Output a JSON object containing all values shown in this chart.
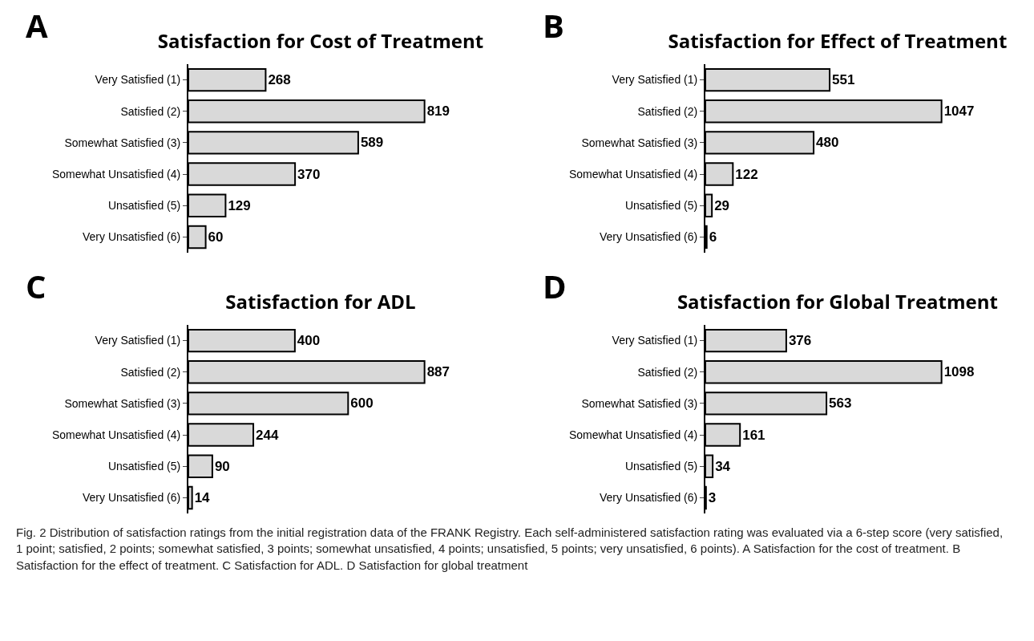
{
  "chart_data": [
    {
      "type": "bar",
      "orientation": "horizontal",
      "title": "Satisfaction for Cost of Treatment",
      "categories": [
        "Very Satisfied (1)",
        "Satisfied (2)",
        "Somewhat Satisfied (3)",
        "Somewhat Unsatisfied (4)",
        "Unsatisfied (5)",
        "Very Unsatisfied (6)"
      ],
      "values": [
        268,
        819,
        589,
        370,
        129,
        60
      ],
      "color": "#d9d9d9",
      "data_labels": true,
      "grid": false,
      "annotations": [
        "A"
      ]
    },
    {
      "type": "bar",
      "orientation": "horizontal",
      "title": "Satisfaction for Effect of Treatment",
      "categories": [
        "Very Satisfied (1)",
        "Satisfied (2)",
        "Somewhat Satisfied (3)",
        "Somewhat Unsatisfied (4)",
        "Unsatisfied (5)",
        "Very Unsatisfied (6)"
      ],
      "values": [
        551,
        1047,
        480,
        122,
        29,
        6
      ],
      "color": "#d9d9d9",
      "data_labels": true,
      "grid": false,
      "annotations": [
        "B"
      ]
    },
    {
      "type": "bar",
      "orientation": "horizontal",
      "title": "Satisfaction for ADL",
      "categories": [
        "Very Satisfied (1)",
        "Satisfied (2)",
        "Somewhat Satisfied (3)",
        "Somewhat Unsatisfied (4)",
        "Unsatisfied (5)",
        "Very Unsatisfied (6)"
      ],
      "values": [
        400,
        887,
        600,
        244,
        90,
        14
      ],
      "color": "#d9d9d9",
      "data_labels": true,
      "grid": false,
      "annotations": [
        "C"
      ]
    },
    {
      "type": "bar",
      "orientation": "horizontal",
      "title": "Satisfaction for Global Treatment",
      "categories": [
        "Very Satisfied (1)",
        "Satisfied (2)",
        "Somewhat Satisfied (3)",
        "Somewhat Unsatisfied (4)",
        "Unsatisfied (5)",
        "Very Unsatisfied (6)"
      ],
      "values": [
        376,
        1098,
        563,
        161,
        34,
        3
      ],
      "color": "#d9d9d9",
      "data_labels": true,
      "grid": false,
      "annotations": [
        "D",
        "Fig. 2  Distribution of satisfaction ratings from the initial registration data of the FRANK Registry. Each self-administered satisfaction rating was evaluated via a 6-step score (very satisfied, 1 point; satisfied, 2 points; somewhat satisfied, 3 points; somewhat unsatisfied, 4 points; unsatisfied, 5 points; very unsatisfied, 6 points). A Satisfaction for the cost of treatment. B Satisfaction for the effect of treatment. C Satisfaction for ADL. D Satisfaction for global treatment"
      ]
    }
  ]
}
